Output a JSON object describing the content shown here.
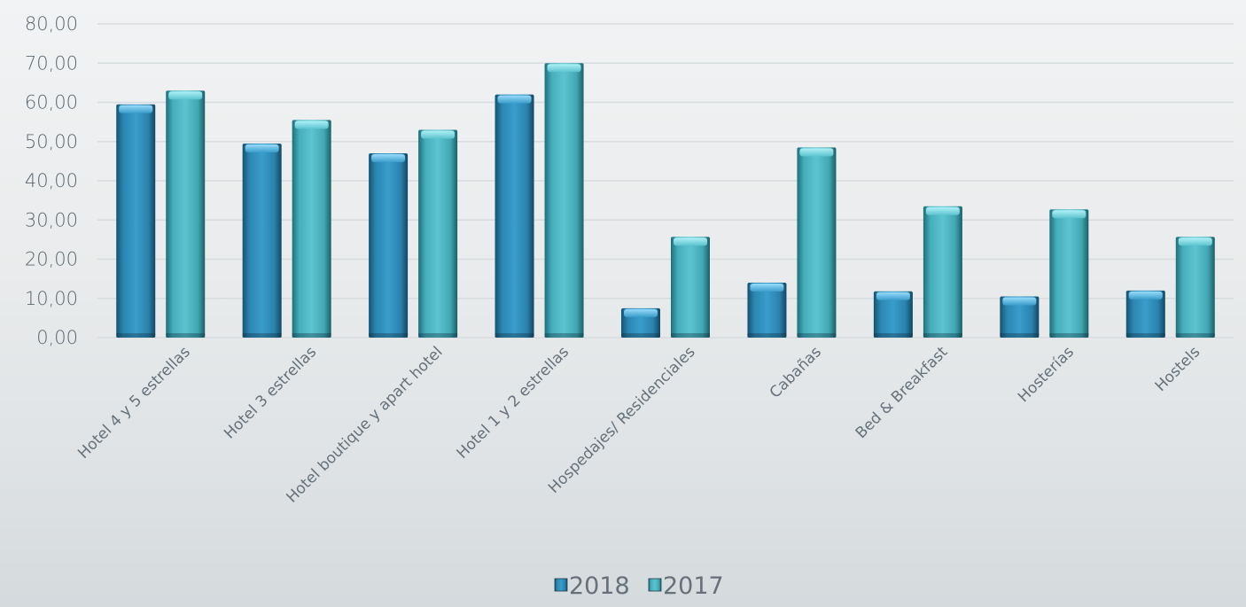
{
  "chart_data": {
    "type": "bar",
    "categories": [
      "Hotel 4 y 5 estrellas",
      "Hotel 3 estrellas",
      "Hotel boutique y apart hotel",
      "Hotel 1 y 2 estrellas",
      "Hospedajes/ Residenciales",
      "Cabañas",
      "Bed & Breakfast",
      "Hosterías",
      "Hostels"
    ],
    "series": [
      {
        "name": "2018",
        "values": [
          59.5,
          49.5,
          47.0,
          62.0,
          7.5,
          14.0,
          11.8,
          10.5,
          12.0
        ]
      },
      {
        "name": "2017",
        "values": [
          63.0,
          55.5,
          53.0,
          70.0,
          25.7,
          48.5,
          33.5,
          32.7,
          25.7
        ]
      }
    ],
    "yticks": [
      "0,00",
      "10,00",
      "20,00",
      "30,00",
      "40,00",
      "50,00",
      "60,00",
      "70,00",
      "80,00"
    ],
    "ylim": [
      0,
      80
    ],
    "title": "",
    "xlabel": "",
    "ylabel": "",
    "grid": true,
    "legend_position": "bottom-center",
    "colors": {
      "2018": "#2e8fbd",
      "2017": "#4ab8c4",
      "gridline": "#d7dcdf",
      "text": "#5f6b74"
    }
  }
}
